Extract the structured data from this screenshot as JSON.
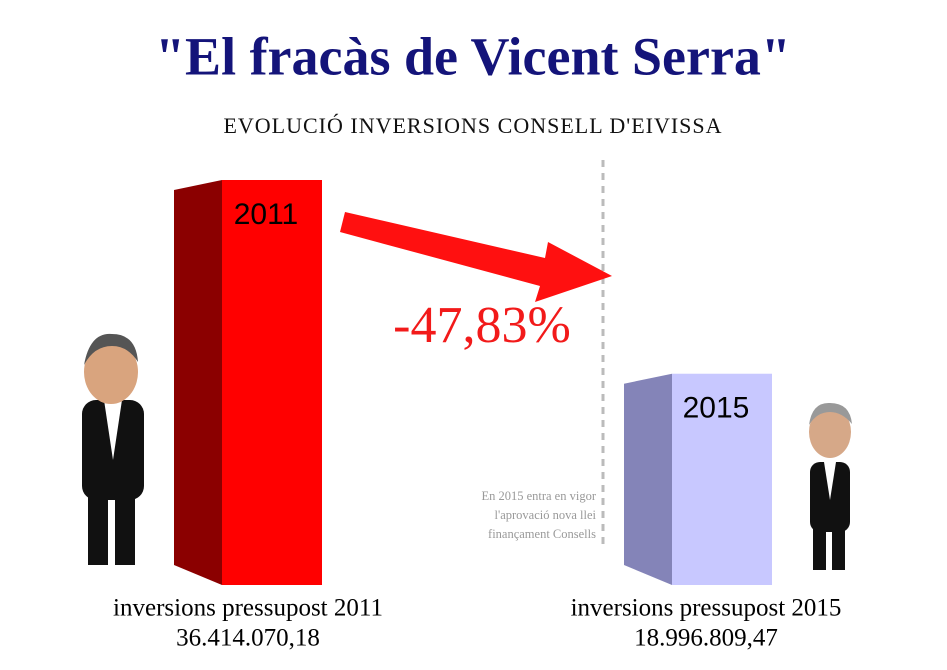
{
  "chart_data": {
    "type": "bar",
    "title": "\"El fracàs de Vicent Serra\"",
    "subtitle": "EVOLUCIÓ INVERSIONS CONSELL D'EIVISSA",
    "categories": [
      "2011",
      "2015"
    ],
    "captions": [
      "inversions pressupost 2011",
      "inversions pressupost 2015"
    ],
    "values": [
      36414070.18,
      18996809.47
    ],
    "value_labels": [
      "36.414.070,18",
      "18.996.809,47"
    ],
    "colors": [
      "#ff0000",
      "#c8c8ff"
    ],
    "side_colors": [
      "#8b0000",
      "#8484b8"
    ],
    "annotation": "-47,83%",
    "note": [
      "En 2015 entra en vigor",
      "l'aprovació nova llei",
      "finançament Consells"
    ]
  }
}
